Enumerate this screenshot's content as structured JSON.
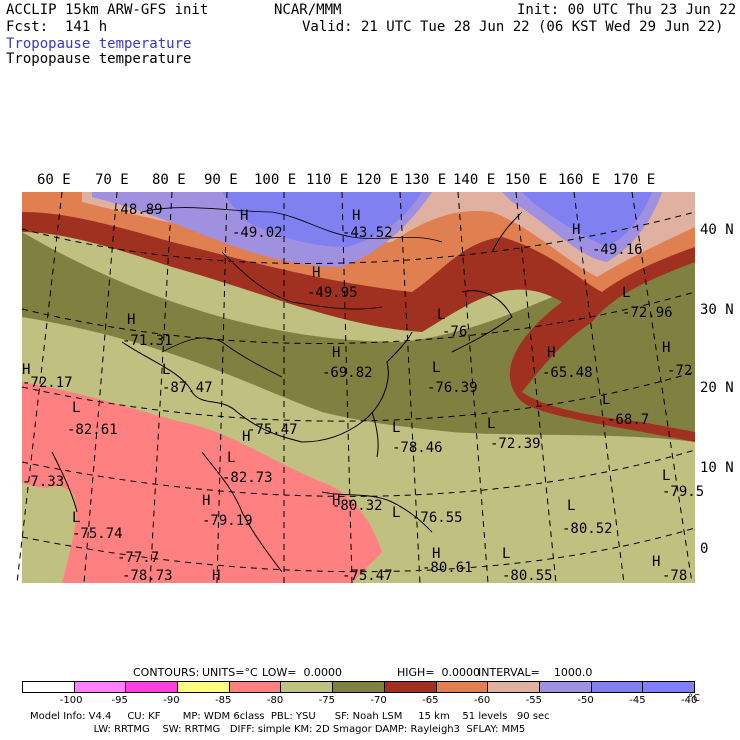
{
  "header": {
    "model": "ACCLIP 15km ARW-GFS init",
    "org": "NCAR/MMM",
    "init": "Init: 00 UTC Thu 23 Jun 22",
    "fcst": "Fcst:  141 h",
    "valid": "Valid: 21 UTC Tue 28 Jun 22 (06 KST Wed 29 Jun 22)",
    "field1": "Tropopause temperature",
    "field2": "Tropopause temperature"
  },
  "lon_labels": [
    "60 E",
    "70 E",
    "80 E",
    "90 E",
    "100 E",
    "110 E",
    "120 E",
    "130 E",
    "140 E",
    "150 E",
    "160 E",
    "170 E"
  ],
  "lat_labels": [
    "40 N",
    "30 N",
    "20 N",
    "10 N",
    "0"
  ],
  "map_labels": [
    {
      "t": "-48.89"
    },
    {
      "t": "H"
    },
    {
      "t": "-49.02"
    },
    {
      "t": "H"
    },
    {
      "t": "-43.52"
    },
    {
      "t": "H"
    },
    {
      "t": "-49.16"
    },
    {
      "t": "H"
    },
    {
      "t": "-49.95"
    },
    {
      "t": "L"
    },
    {
      "t": "-72.96"
    },
    {
      "t": "H"
    },
    {
      "t": "-71.31"
    },
    {
      "t": "L"
    },
    {
      "t": "-76"
    },
    {
      "t": "H"
    },
    {
      "t": "-69.82"
    },
    {
      "t": "L"
    },
    {
      "t": "-76.39"
    },
    {
      "t": "H"
    },
    {
      "t": "-65.48"
    },
    {
      "t": "H"
    },
    {
      "t": "-72"
    },
    {
      "t": "H"
    },
    {
      "t": "-72.17"
    },
    {
      "t": "L"
    },
    {
      "t": "-87.47"
    },
    {
      "t": "L"
    },
    {
      "t": "-68.7"
    },
    {
      "t": "L"
    },
    {
      "t": "-82.61"
    },
    {
      "t": "H"
    },
    {
      "t": "-75.47"
    },
    {
      "t": "L"
    },
    {
      "t": "-78.46"
    },
    {
      "t": "L"
    },
    {
      "t": "-72.39"
    },
    {
      "t": "L"
    },
    {
      "t": "-82.73"
    },
    {
      "t": "-7.33"
    },
    {
      "t": "L"
    },
    {
      "t": "-79.5"
    },
    {
      "t": "H"
    },
    {
      "t": "-80.32"
    },
    {
      "t": "H"
    },
    {
      "t": "-79.19"
    },
    {
      "t": "L"
    },
    {
      "t": "-76.55"
    },
    {
      "t": "L"
    },
    {
      "t": "-75.74"
    },
    {
      "t": "L"
    },
    {
      "t": "-80.52"
    },
    {
      "t": "H"
    },
    {
      "t": "-80.61"
    },
    {
      "t": "L"
    },
    {
      "t": "-80.55"
    },
    {
      "t": "H"
    },
    {
      "t": "-78"
    },
    {
      "t": "-77.7"
    },
    {
      "t": "-78.73"
    },
    {
      "t": "H"
    },
    {
      "t": "-75.47"
    }
  ],
  "contours": {
    "label": "CONTOURS:",
    "units": "UNITS=°C",
    "low": "LOW=  0.0000",
    "high": "HIGH=  0.0000",
    "interval": "INTERVAL=    1000.0"
  },
  "legend": {
    "colors": [
      "#ffffff",
      "#ff80ff",
      "#ff40e0",
      "#ffff80",
      "#ff8080",
      "#c0c080",
      "#808040",
      "#a03020",
      "#e08050",
      "#e0b0a0",
      "#a090e0",
      "#8080f0",
      "#8080ff"
    ],
    "ticks": [
      "-100",
      "-95",
      "-90",
      "-85",
      "-80",
      "-75",
      "-70",
      "-65",
      "-60",
      "-55",
      "-50",
      "-45",
      "-40",
      "°C"
    ]
  },
  "footer": {
    "line1": "Model Info: V4.4     CU: KF       MP: WDM 6class  PBL: YSU      SF: Noah LSM     15 km    51 levels   90 sec",
    "line2": "                    LW: RRTMG    SW: RRTMG   DIFF: simple KM: 2D Smagor DAMP: Rayleigh3  SFLAY: MM5"
  }
}
